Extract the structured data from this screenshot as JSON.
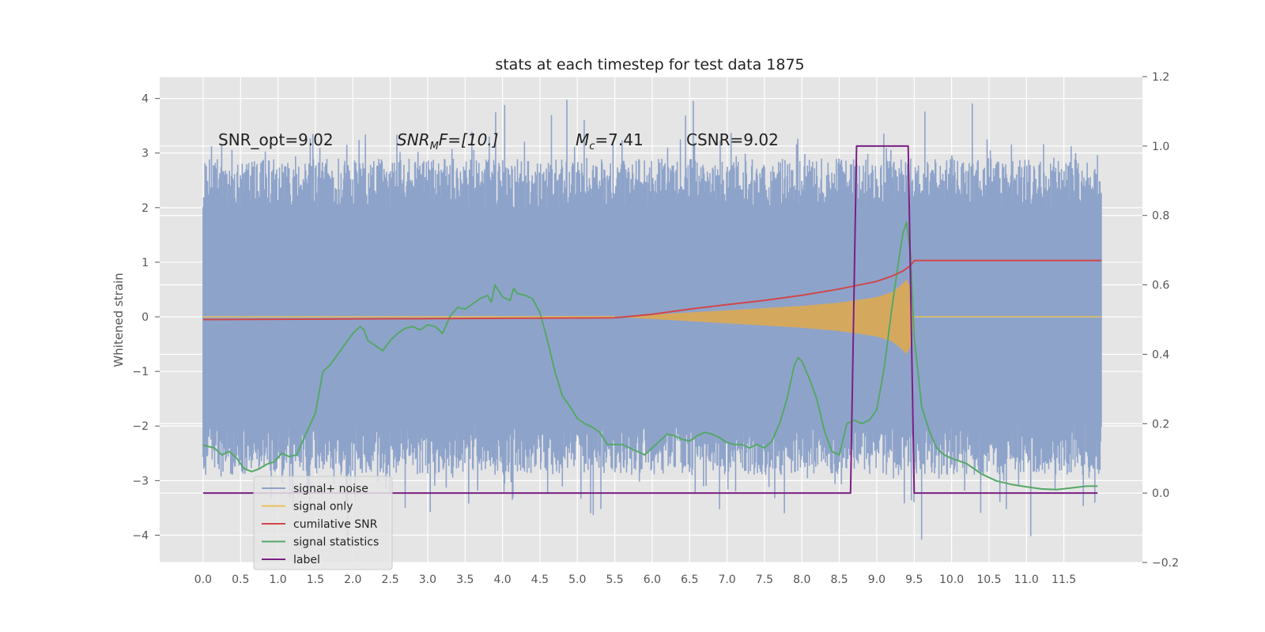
{
  "chart_data": {
    "type": "line",
    "title": "stats at each timestep for test data 1875",
    "ylabel": "Whitened strain",
    "y2label": "",
    "xlim": [
      -0.58,
      12.55
    ],
    "ylim": [
      -4.5,
      4.4
    ],
    "y2lim": [
      -0.2,
      1.2
    ],
    "x_ticks": [
      "0.0",
      "0.5",
      "1.0",
      "1.5",
      "2.0",
      "2.5",
      "3.0",
      "3.5",
      "4.0",
      "4.5",
      "5.0",
      "5.5",
      "6.0",
      "6.5",
      "7.0",
      "7.5",
      "8.0",
      "8.5",
      "9.0",
      "9.5",
      "10.0",
      "10.5",
      "11.0",
      "11.5"
    ],
    "y_ticks": [
      4,
      3,
      2,
      1,
      0,
      -1,
      -2,
      -3,
      -4
    ],
    "y_tick_labels": [
      "4",
      "3",
      "2",
      "1",
      "0",
      "−1",
      "−2",
      "−3",
      "−4"
    ],
    "y2_ticks": [
      1.2,
      1.0,
      0.8,
      0.6,
      0.4,
      0.2,
      0.0,
      -0.2
    ],
    "y2_tick_labels": [
      "1.2",
      "1.0",
      "0.8",
      "0.6",
      "0.4",
      "0.2",
      "0.0",
      "−0.2"
    ],
    "grid": true,
    "legend_position": "lower-left",
    "annotations": {
      "snr_opt": "SNR_opt=9.02",
      "snr_mf_prefix": "SNR",
      "snr_mf_sub": "M",
      "snr_mf_rest": "F=[10.]",
      "mc_prefix": "M",
      "mc_sub": "c",
      "mc_rest": "=7.41",
      "csnr": "CSNR=9.02"
    },
    "series": [
      {
        "name": "signal+ noise",
        "color": "#8ea3ca",
        "axis": "left",
        "x_range": [
          0.0,
          12.0
        ],
        "band_low": -2.3,
        "band_high": 2.3,
        "typical_peak": 3.0,
        "max_spike": 4.0,
        "min_spike": -4.1
      },
      {
        "name": "signal only",
        "color": "#e8c15a",
        "axis": "left",
        "x": [
          5.5,
          6.0,
          6.5,
          7.0,
          7.5,
          8.0,
          8.5,
          9.0,
          9.2,
          9.3,
          9.4,
          9.45,
          9.5,
          12.0
        ],
        "amplitude": [
          0.0,
          0.04,
          0.08,
          0.12,
          0.16,
          0.2,
          0.26,
          0.36,
          0.45,
          0.55,
          0.68,
          0.55,
          0.0,
          0.0
        ]
      },
      {
        "name": "cumilative SNR",
        "color": "#d0474b",
        "axis": "right",
        "x": [
          0.0,
          5.5,
          6.0,
          6.5,
          7.0,
          7.5,
          8.0,
          8.5,
          9.0,
          9.2,
          9.35,
          9.45,
          9.5,
          12.0
        ],
        "y": [
          0.5,
          0.505,
          0.515,
          0.53,
          0.543,
          0.555,
          0.57,
          0.588,
          0.61,
          0.625,
          0.64,
          0.655,
          0.67,
          0.67
        ]
      },
      {
        "name": "signal statistics",
        "color": "#55a868",
        "axis": "right",
        "x": [
          0.0,
          0.15,
          0.25,
          0.35,
          0.45,
          0.55,
          0.65,
          0.75,
          0.85,
          0.95,
          1.05,
          1.15,
          1.25,
          1.35,
          1.5,
          1.6,
          1.7,
          1.8,
          1.9,
          2.0,
          2.1,
          2.15,
          2.2,
          2.3,
          2.4,
          2.5,
          2.6,
          2.7,
          2.8,
          2.9,
          3.0,
          3.1,
          3.2,
          3.3,
          3.4,
          3.5,
          3.6,
          3.7,
          3.8,
          3.85,
          3.9,
          4.0,
          4.1,
          4.15,
          4.2,
          4.3,
          4.4,
          4.5,
          4.6,
          4.7,
          4.8,
          4.9,
          5.0,
          5.1,
          5.2,
          5.3,
          5.4,
          5.5,
          5.6,
          5.7,
          5.8,
          5.9,
          6.0,
          6.1,
          6.2,
          6.3,
          6.4,
          6.5,
          6.6,
          6.7,
          6.8,
          6.9,
          7.0,
          7.1,
          7.2,
          7.3,
          7.4,
          7.5,
          7.6,
          7.7,
          7.8,
          7.9,
          7.95,
          8.0,
          8.1,
          8.2,
          8.3,
          8.4,
          8.5,
          8.6,
          8.7,
          8.8,
          8.9,
          9.0,
          9.1,
          9.2,
          9.3,
          9.35,
          9.4,
          9.45,
          9.5,
          9.6,
          9.7,
          9.8,
          9.9,
          10.0,
          10.2,
          10.4,
          10.6,
          10.8,
          11.0,
          11.2,
          11.4,
          11.6,
          11.8,
          11.95
        ],
        "y": [
          0.138,
          0.13,
          0.11,
          0.12,
          0.1,
          0.07,
          0.062,
          0.07,
          0.083,
          0.09,
          0.115,
          0.105,
          0.11,
          0.16,
          0.23,
          0.35,
          0.37,
          0.4,
          0.43,
          0.46,
          0.48,
          0.47,
          0.44,
          0.425,
          0.41,
          0.44,
          0.46,
          0.475,
          0.48,
          0.47,
          0.485,
          0.48,
          0.46,
          0.51,
          0.535,
          0.53,
          0.545,
          0.56,
          0.57,
          0.55,
          0.6,
          0.565,
          0.555,
          0.59,
          0.575,
          0.57,
          0.56,
          0.52,
          0.44,
          0.35,
          0.28,
          0.25,
          0.215,
          0.2,
          0.19,
          0.175,
          0.14,
          0.14,
          0.14,
          0.13,
          0.12,
          0.11,
          0.13,
          0.15,
          0.17,
          0.165,
          0.155,
          0.15,
          0.165,
          0.175,
          0.17,
          0.16,
          0.145,
          0.14,
          0.14,
          0.13,
          0.14,
          0.13,
          0.15,
          0.2,
          0.27,
          0.37,
          0.39,
          0.38,
          0.33,
          0.27,
          0.18,
          0.12,
          0.11,
          0.2,
          0.21,
          0.2,
          0.21,
          0.24,
          0.36,
          0.53,
          0.68,
          0.75,
          0.78,
          0.69,
          0.45,
          0.25,
          0.18,
          0.13,
          0.11,
          0.1,
          0.085,
          0.055,
          0.035,
          0.025,
          0.018,
          0.012,
          0.01,
          0.015,
          0.02,
          0.02
        ]
      },
      {
        "name": "label",
        "color": "#7b1f84",
        "axis": "right",
        "x": [
          0.0,
          8.65,
          8.73,
          9.42,
          9.5,
          11.95
        ],
        "y": [
          0.0,
          0.0,
          1.0,
          1.0,
          0.0,
          0.0
        ]
      }
    ]
  }
}
